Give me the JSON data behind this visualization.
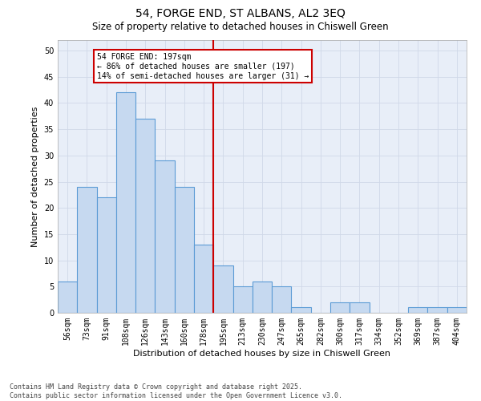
{
  "title1": "54, FORGE END, ST ALBANS, AL2 3EQ",
  "title2": "Size of property relative to detached houses in Chiswell Green",
  "xlabel": "Distribution of detached houses by size in Chiswell Green",
  "ylabel": "Number of detached properties",
  "categories": [
    "56sqm",
    "73sqm",
    "91sqm",
    "108sqm",
    "126sqm",
    "143sqm",
    "160sqm",
    "178sqm",
    "195sqm",
    "213sqm",
    "230sqm",
    "247sqm",
    "265sqm",
    "282sqm",
    "300sqm",
    "317sqm",
    "334sqm",
    "352sqm",
    "369sqm",
    "387sqm",
    "404sqm"
  ],
  "values": [
    6,
    24,
    22,
    42,
    37,
    29,
    24,
    13,
    9,
    5,
    6,
    5,
    1,
    0,
    2,
    2,
    0,
    0,
    1,
    1,
    1
  ],
  "bar_color": "#c6d9f0",
  "bar_edgecolor": "#5b9bd5",
  "bar_linewidth": 0.8,
  "vline_x_index": 8,
  "vline_color": "#cc0000",
  "annotation_text": "54 FORGE END: 197sqm\n← 86% of detached houses are smaller (197)\n14% of semi-detached houses are larger (31) →",
  "annotation_box_color": "#cc0000",
  "ylim": [
    0,
    52
  ],
  "yticks": [
    0,
    5,
    10,
    15,
    20,
    25,
    30,
    35,
    40,
    45,
    50
  ],
  "grid_color": "#d0d8e8",
  "bg_color": "#e8eef8",
  "footer": "Contains HM Land Registry data © Crown copyright and database right 2025.\nContains public sector information licensed under the Open Government Licence v3.0.",
  "title_fontsize": 10,
  "subtitle_fontsize": 8.5,
  "tick_fontsize": 7,
  "ylabel_fontsize": 8,
  "xlabel_fontsize": 8,
  "footer_fontsize": 6
}
